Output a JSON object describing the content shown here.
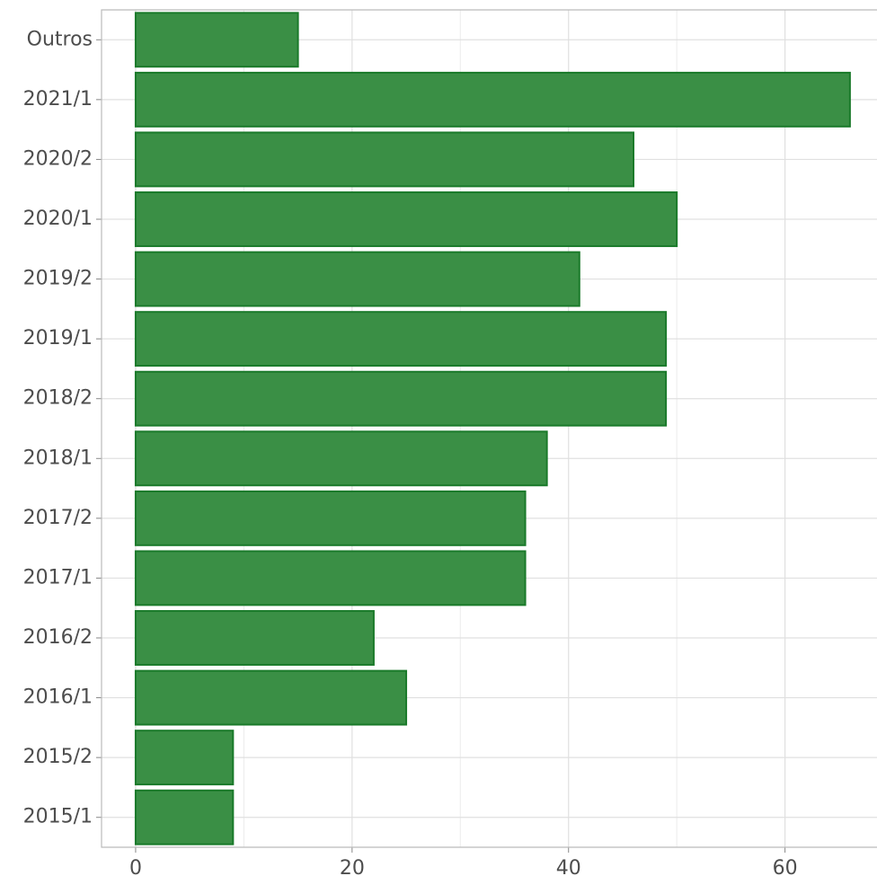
{
  "chart_data": {
    "type": "barh",
    "categories": [
      "Outros",
      "2021/1",
      "2020/2",
      "2020/1",
      "2019/2",
      "2019/1",
      "2018/2",
      "2018/1",
      "2017/2",
      "2017/1",
      "2016/2",
      "2016/1",
      "2015/2",
      "2015/1"
    ],
    "values": [
      15,
      66,
      46,
      50,
      41,
      49,
      49,
      38,
      36,
      36,
      22,
      25,
      9,
      9
    ],
    "color": "#3a8f45",
    "xlim": [
      -3.15,
      68.5
    ],
    "xticks": [
      0,
      20,
      40,
      60
    ],
    "grid": true
  }
}
